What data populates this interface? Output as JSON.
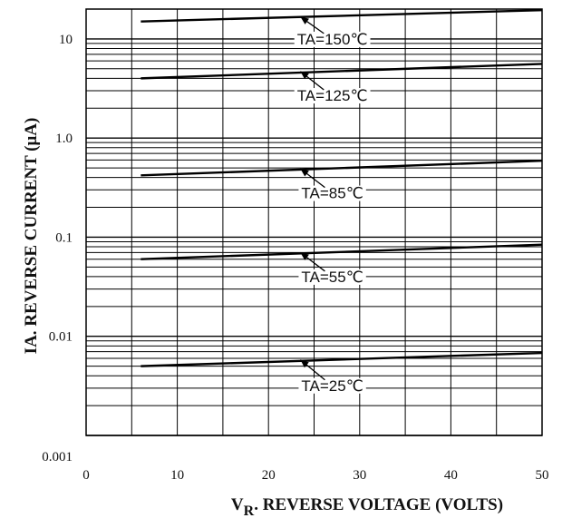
{
  "chart_data": {
    "type": "line",
    "scale": {
      "x": "linear",
      "y": "log"
    },
    "xlim": [
      0,
      50
    ],
    "ylim": [
      0.001,
      20
    ],
    "grid": true,
    "xlabel": {
      "main": "V",
      "sub": "R",
      "rest": ". REVERSE VOLTAGE (VOLTS)"
    },
    "ylabel": "IA. REVERSE CURRENT (μA)",
    "x_ticks": [
      {
        "value": 0,
        "label": "0"
      },
      {
        "value": 10,
        "label": "10"
      },
      {
        "value": 20,
        "label": "20"
      },
      {
        "value": 30,
        "label": "30"
      },
      {
        "value": 40,
        "label": "40"
      },
      {
        "value": 50,
        "label": "50"
      }
    ],
    "y_ticks": [
      {
        "value": 10,
        "label": "10"
      },
      {
        "value": 1,
        "label": "1.0"
      },
      {
        "value": 0.1,
        "label": "0.1"
      },
      {
        "value": 0.01,
        "label": "0.01"
      },
      {
        "value": 0.001,
        "label": "0.001"
      }
    ],
    "series": [
      {
        "name": "TA=150℃",
        "x": [
          6,
          50
        ],
        "y": [
          15,
          19.5
        ],
        "label_at": {
          "x": 27,
          "y": 10
        },
        "arrow_to": {
          "x": 23.5,
          "y": 16.7
        }
      },
      {
        "name": "TA=125℃",
        "x": [
          6,
          50
        ],
        "y": [
          4,
          5.6
        ],
        "label_at": {
          "x": 27,
          "y": 2.7
        },
        "arrow_to": {
          "x": 23.5,
          "y": 4.7
        }
      },
      {
        "name": "TA=85℃",
        "x": [
          6,
          50
        ],
        "y": [
          0.42,
          0.59
        ],
        "label_at": {
          "x": 27,
          "y": 0.28
        },
        "arrow_to": {
          "x": 23.5,
          "y": 0.49
        }
      },
      {
        "name": "TA=55℃",
        "x": [
          6,
          50
        ],
        "y": [
          0.06,
          0.084
        ],
        "label_at": {
          "x": 27,
          "y": 0.04
        },
        "arrow_to": {
          "x": 23.5,
          "y": 0.07
        }
      },
      {
        "name": "TA=25℃",
        "x": [
          6,
          50
        ],
        "y": [
          0.005,
          0.0068
        ],
        "label_at": {
          "x": 27,
          "y": 0.0032
        },
        "arrow_to": {
          "x": 23.5,
          "y": 0.0058
        }
      }
    ]
  }
}
